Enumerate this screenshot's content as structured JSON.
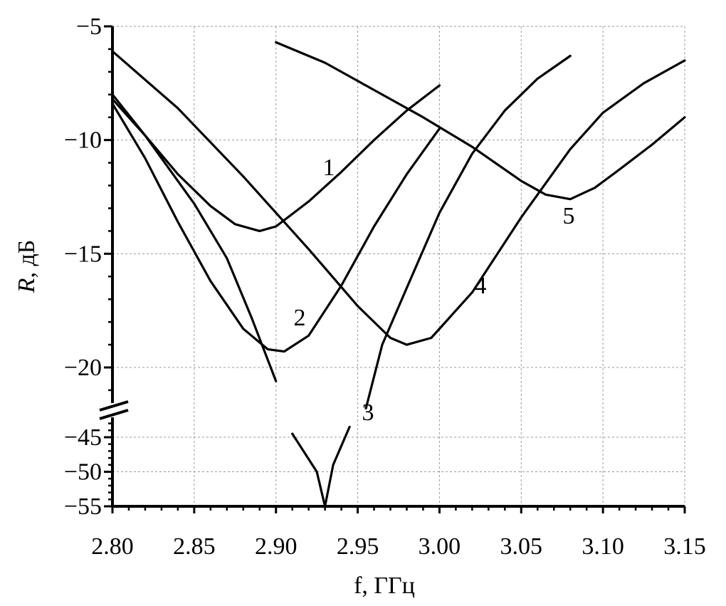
{
  "chart_data": {
    "type": "line",
    "xlabel": "f,  ГГц",
    "ylabel_italic": "R",
    "ylabel_rest": ",  дБ",
    "xlim": [
      2.8,
      3.15
    ],
    "y_segments": [
      {
        "range": [
          -21.8,
          -5
        ],
        "ticks": [
          -5,
          -10,
          -15,
          -20
        ]
      },
      {
        "range": [
          -55,
          -42.5
        ],
        "ticks": [
          -45,
          -50,
          -55
        ]
      }
    ],
    "axis_break": true,
    "grid": true,
    "x_ticks": [
      2.8,
      2.85,
      2.9,
      2.95,
      3.0,
      3.05,
      3.1,
      3.15
    ],
    "x_tick_labels": [
      "2.80",
      "2.85",
      "2.90",
      "2.95",
      "3.00",
      "3.05",
      "3.10",
      "3.15"
    ],
    "y_tick_labels": [
      "−5",
      "−10",
      "−15",
      "−20",
      "−45",
      "−50",
      "−55"
    ],
    "series": [
      {
        "label": "1",
        "points": [
          [
            2.8,
            -8.0
          ],
          [
            2.82,
            -9.8
          ],
          [
            2.84,
            -11.5
          ],
          [
            2.86,
            -12.9
          ],
          [
            2.875,
            -13.7
          ],
          [
            2.89,
            -14.0
          ],
          [
            2.9,
            -13.8
          ],
          [
            2.92,
            -12.7
          ],
          [
            2.94,
            -11.4
          ],
          [
            2.96,
            -10.0
          ],
          [
            2.98,
            -8.7
          ],
          [
            3.0,
            -7.6
          ]
        ]
      },
      {
        "label": "2",
        "points": [
          [
            2.8,
            -8.4
          ],
          [
            2.82,
            -10.8
          ],
          [
            2.84,
            -13.6
          ],
          [
            2.86,
            -16.2
          ],
          [
            2.88,
            -18.3
          ],
          [
            2.895,
            -19.2
          ],
          [
            2.905,
            -19.3
          ],
          [
            2.92,
            -18.6
          ],
          [
            2.94,
            -16.4
          ],
          [
            2.96,
            -13.8
          ],
          [
            2.98,
            -11.5
          ],
          [
            3.0,
            -9.5
          ]
        ]
      },
      {
        "label": "3",
        "points": [
          [
            2.8,
            -8.2
          ],
          [
            2.82,
            -9.8
          ],
          [
            2.85,
            -12.8
          ],
          [
            2.87,
            -15.2
          ],
          [
            2.885,
            -17.8
          ],
          [
            2.9,
            -20.6
          ],
          [
            2.91,
            -44.5
          ],
          [
            2.925,
            -50.0
          ],
          [
            2.93,
            -55.0
          ],
          [
            2.935,
            -49.0
          ],
          [
            2.945,
            -43.5
          ],
          [
            2.955,
            -21.8
          ],
          [
            2.965,
            -19.0
          ],
          [
            2.98,
            -16.5
          ],
          [
            3.0,
            -13.2
          ],
          [
            3.02,
            -10.6
          ],
          [
            3.04,
            -8.7
          ],
          [
            3.06,
            -7.3
          ],
          [
            3.08,
            -6.3
          ]
        ]
      },
      {
        "label": "4",
        "points": [
          [
            2.8,
            -6.1
          ],
          [
            2.84,
            -8.6
          ],
          [
            2.88,
            -11.6
          ],
          [
            2.92,
            -14.8
          ],
          [
            2.95,
            -17.3
          ],
          [
            2.97,
            -18.7
          ],
          [
            2.98,
            -19.0
          ],
          [
            2.995,
            -18.7
          ],
          [
            3.02,
            -16.7
          ],
          [
            3.05,
            -13.4
          ],
          [
            3.08,
            -10.4
          ],
          [
            3.1,
            -8.8
          ],
          [
            3.125,
            -7.5
          ],
          [
            3.15,
            -6.5
          ]
        ]
      },
      {
        "label": "5",
        "points": [
          [
            2.9,
            -5.7
          ],
          [
            2.93,
            -6.6
          ],
          [
            2.96,
            -7.8
          ],
          [
            2.99,
            -9.0
          ],
          [
            3.02,
            -10.3
          ],
          [
            3.05,
            -11.8
          ],
          [
            3.065,
            -12.4
          ],
          [
            3.08,
            -12.6
          ],
          [
            3.095,
            -12.1
          ],
          [
            3.11,
            -11.3
          ],
          [
            3.13,
            -10.2
          ],
          [
            3.15,
            -9.0
          ]
        ]
      }
    ]
  }
}
